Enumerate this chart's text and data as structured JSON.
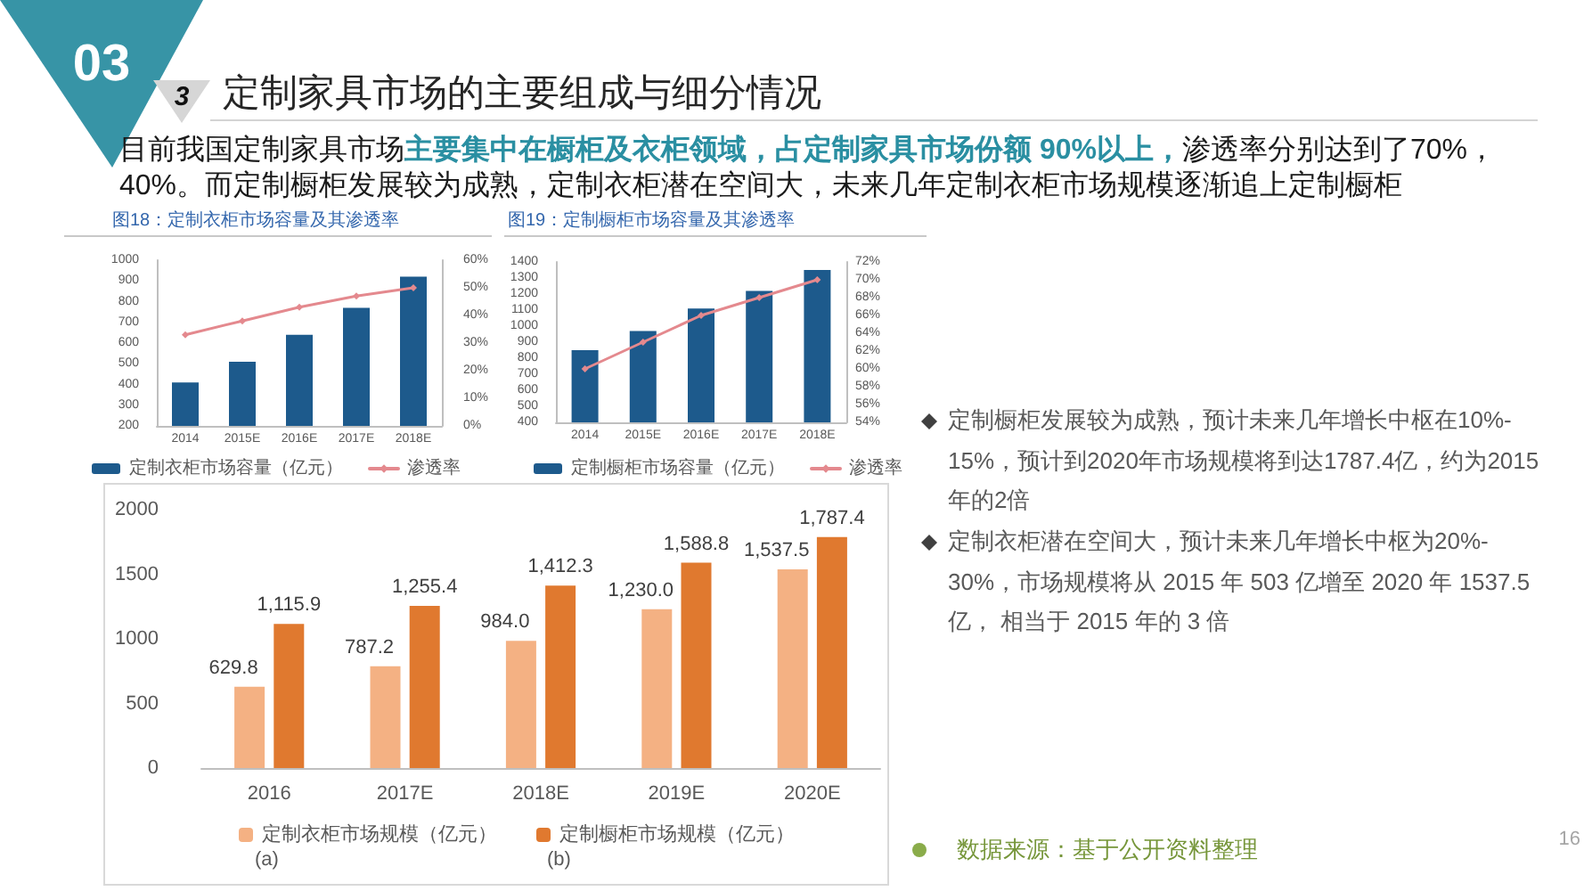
{
  "chart_data": [
    {
      "type": "other",
      "title": "定制家具市场的主要组成与细分情况",
      "annotations": [
        "03",
        "3",
        "目前我国定制家具市场",
        "主要集中在橱柜及衣柜领域，占定制家具市场份额 90%以上，",
        "渗透率分别达到了70%，",
        "40%。而定制橱柜发展较为成熟，定制衣柜潜在空间大，未来几年定制衣柜市场规模逐渐追上定制橱柜"
      ]
    },
    {
      "type": "bar",
      "title": "图18：定制衣柜市场容量及其渗透率",
      "categories": [
        "2014",
        "2015E",
        "2016E",
        "2017E",
        "2018E"
      ],
      "series": [
        {
          "name": "定制衣柜市场容量（亿元）",
          "color": "#1d5a8c",
          "values": [
            410,
            510,
            640,
            770,
            920
          ]
        },
        {
          "name": "渗透率",
          "type": "line",
          "axis": "y2",
          "color": "#e4898e",
          "values": [
            33,
            38,
            43,
            47,
            50
          ]
        }
      ],
      "ylim": [
        200,
        1000
      ],
      "yticks": [
        200,
        300,
        400,
        500,
        600,
        700,
        800,
        900,
        1000
      ],
      "y2lim": [
        0,
        60
      ],
      "y2ticks": [
        {
          "value": 0,
          "label": "0%"
        },
        {
          "value": 10,
          "label": "10%"
        },
        {
          "value": 20,
          "label": "20%"
        },
        {
          "value": 30,
          "label": "30%"
        },
        {
          "value": 40,
          "label": "40%"
        },
        {
          "value": 50,
          "label": "50%"
        },
        {
          "value": 60,
          "label": "60%"
        }
      ],
      "legend": "bottom",
      "marker": "diamond"
    },
    {
      "type": "bar",
      "title": "图19：定制橱柜市场容量及其渗透率",
      "categories": [
        "2014",
        "2015E",
        "2016E",
        "2017E",
        "2018E"
      ],
      "series": [
        {
          "name": "定制橱柜市场容量（亿元）",
          "color": "#1d5a8c",
          "values": [
            850,
            970,
            1110,
            1220,
            1350
          ]
        },
        {
          "name": "渗透率",
          "type": "line",
          "axis": "y2",
          "color": "#e4898e",
          "values": [
            60,
            63,
            66,
            68,
            70
          ]
        }
      ],
      "ylim": [
        400,
        1400
      ],
      "yticks": [
        400,
        500,
        600,
        700,
        800,
        900,
        1000,
        1100,
        1200,
        1300,
        1400
      ],
      "y2lim": [
        54,
        72
      ],
      "y2ticks": [
        {
          "value": 54,
          "label": "54%"
        },
        {
          "value": 56,
          "label": "56%"
        },
        {
          "value": 58,
          "label": "58%"
        },
        {
          "value": 60,
          "label": "60%"
        },
        {
          "value": 62,
          "label": "62%"
        },
        {
          "value": 64,
          "label": "64%"
        },
        {
          "value": 66,
          "label": "66%"
        },
        {
          "value": 68,
          "label": "68%"
        },
        {
          "value": 70,
          "label": "70%"
        },
        {
          "value": 72,
          "label": "72%"
        }
      ],
      "legend": "bottom",
      "marker": "diamond"
    },
    {
      "type": "bar",
      "categories": [
        "2016",
        "2017E",
        "2018E",
        "2019E",
        "2020E"
      ],
      "series": [
        {
          "name": "定制衣柜市场规模（亿元）",
          "color": "#f4b183",
          "values": [
            629.8,
            787.2,
            984.0,
            1230.0,
            1537.5
          ],
          "value_labels": [
            "629.8",
            "787.2",
            "984.0",
            "1,230.0",
            "1,537.5"
          ]
        },
        {
          "name": "定制橱柜市场规模（亿元）",
          "color": "#e0792f",
          "values": [
            1115.9,
            1255.4,
            1412.3,
            1588.8,
            1787.4
          ],
          "value_labels": [
            "1,115.9",
            "1,255.4",
            "1,412.3",
            "1,588.8",
            "1,787.4"
          ]
        }
      ],
      "ylim": [
        0,
        2000
      ],
      "yticks": [
        0,
        500,
        1000,
        1500,
        2000
      ],
      "legend": "bottom",
      "annotations": [
        "(a)",
        "(b)"
      ]
    },
    {
      "type": "other",
      "annotations": [
        "定制橱柜发展较为成熟，预计未来几年增长中枢在10%-15%，预计到2020年市场规模将到达1787.4亿，约为2015年的2倍",
        "定制衣柜潜在空间大，预计未来几年增长中枢为20%-30%，市场规模将从 2015 年 503 亿增至 2020 年 1537.5 亿， 相当于 2015 年的 3 倍",
        "数据来源：基于公开资料整理",
        "16"
      ]
    }
  ]
}
